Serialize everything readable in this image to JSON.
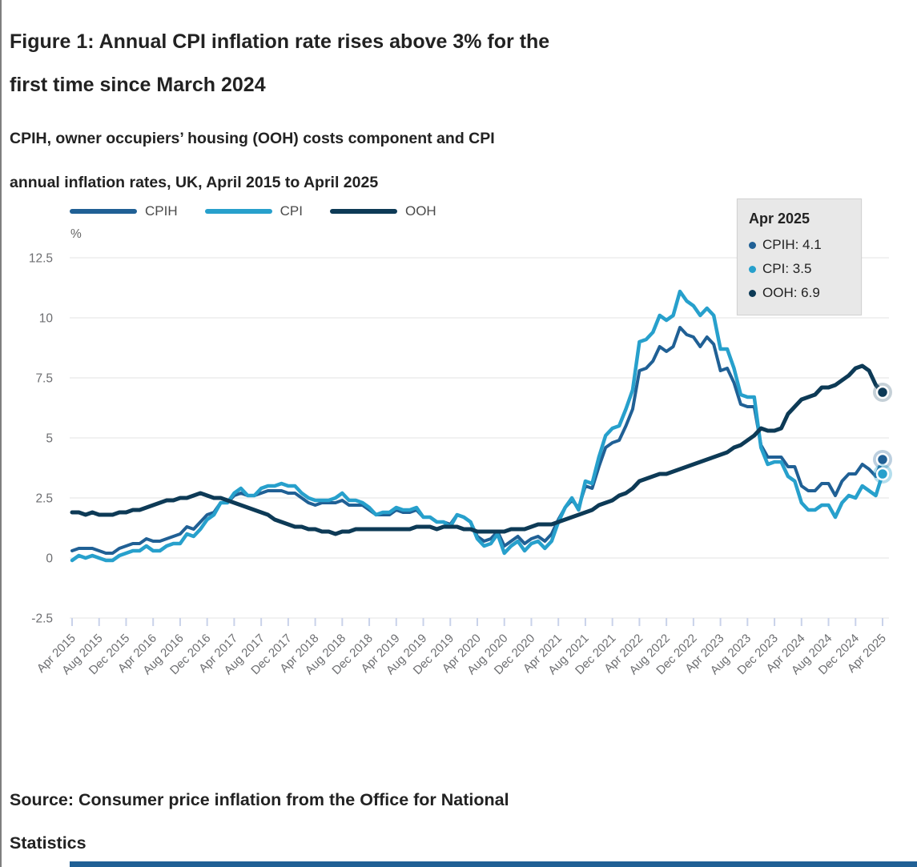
{
  "figure": {
    "title_line1": "Figure 1: Annual CPI inflation rate rises above 3% for the",
    "title_line2": "first time since March 2024",
    "subtitle_line1": "CPIH, owner occupiers’ housing (OOH) costs component and CPI",
    "subtitle_line2": "annual inflation rates, UK, April 2015 to April 2025",
    "source_line1": "Source: Consumer price inflation from the Office for National",
    "source_line2": "Statistics"
  },
  "tooltip": {
    "title": "Apr 2025",
    "rows": [
      {
        "series": "CPIH",
        "text": "CPIH: 4.1",
        "color": "#206095"
      },
      {
        "series": "CPI",
        "text": "CPI: 3.5",
        "color": "#27a0cc"
      },
      {
        "series": "OOH",
        "text": "OOH: 6.9",
        "color": "#0d3a56"
      }
    ]
  },
  "colors": {
    "cpih": "#206095",
    "cpi": "#27a0cc",
    "ooh": "#0d3a56",
    "gridline": "#e3e3e3",
    "tick": "#c9d2ea",
    "axis_text": "#6d6e71",
    "footer_bar": "#206095"
  },
  "chart_data": {
    "type": "line",
    "title": "Annual CPI inflation rate rises above 3% for the first time since March 2024",
    "ylabel": "%",
    "unit": "%",
    "x_start": "Apr 2015",
    "x_end": "Apr 2025",
    "frequency": "monthly",
    "ylim": [
      -2.5,
      12.5
    ],
    "grid": "horizontal",
    "legend_position": "top",
    "y_ticks": [
      12.5,
      10,
      7.5,
      5,
      2.5,
      0,
      -2.5
    ],
    "x_labels": [
      "Apr 2015",
      "Aug 2015",
      "Dec 2015",
      "Apr 2016",
      "Aug 2016",
      "Dec 2016",
      "Apr 2017",
      "Aug 2017",
      "Dec 2017",
      "Apr 2018",
      "Aug 2018",
      "Dec 2018",
      "Apr 2019",
      "Aug 2019",
      "Dec 2019",
      "Apr 2020",
      "Aug 2020",
      "Dec 2020",
      "Apr 2021",
      "Aug 2021",
      "Dec 2021",
      "Apr 2022",
      "Aug 2022",
      "Dec 2022",
      "Apr 2023",
      "Aug 2023",
      "Dec 2023",
      "Apr 2024",
      "Aug 2024",
      "Dec 2024",
      "Apr 2025"
    ],
    "series": [
      {
        "name": "CPIH",
        "color": "#206095",
        "width": 4,
        "values": [
          0.3,
          0.4,
          0.4,
          0.4,
          0.3,
          0.2,
          0.2,
          0.4,
          0.5,
          0.6,
          0.6,
          0.8,
          0.7,
          0.7,
          0.8,
          0.9,
          1.0,
          1.3,
          1.2,
          1.5,
          1.8,
          1.9,
          2.3,
          2.3,
          2.6,
          2.7,
          2.6,
          2.6,
          2.7,
          2.8,
          2.8,
          2.8,
          2.7,
          2.7,
          2.5,
          2.3,
          2.2,
          2.3,
          2.3,
          2.3,
          2.4,
          2.2,
          2.2,
          2.2,
          2.0,
          1.8,
          1.8,
          1.8,
          2.0,
          1.9,
          1.9,
          2.0,
          1.7,
          1.7,
          1.5,
          1.5,
          1.4,
          1.8,
          1.7,
          1.5,
          0.9,
          0.7,
          0.8,
          1.1,
          0.5,
          0.7,
          0.9,
          0.6,
          0.8,
          0.9,
          0.7,
          1.0,
          1.6,
          2.1,
          2.4,
          2.1,
          3.0,
          2.9,
          3.8,
          4.6,
          4.8,
          4.9,
          5.5,
          6.2,
          7.8,
          7.9,
          8.2,
          8.8,
          8.6,
          8.8,
          9.6,
          9.3,
          9.2,
          8.8,
          9.2,
          8.9,
          7.8,
          7.9,
          7.3,
          6.4,
          6.3,
          6.3,
          4.7,
          4.2,
          4.2,
          4.2,
          3.8,
          3.8,
          3.0,
          2.8,
          2.8,
          3.1,
          3.1,
          2.6,
          3.2,
          3.5,
          3.5,
          3.9,
          3.7,
          3.4,
          4.1
        ]
      },
      {
        "name": "CPI",
        "color": "#27a0cc",
        "width": 4.5,
        "values": [
          -0.1,
          0.1,
          0.0,
          0.1,
          0.0,
          -0.1,
          -0.1,
          0.1,
          0.2,
          0.3,
          0.3,
          0.5,
          0.3,
          0.3,
          0.5,
          0.6,
          0.6,
          1.0,
          0.9,
          1.2,
          1.6,
          1.8,
          2.3,
          2.3,
          2.7,
          2.9,
          2.6,
          2.6,
          2.9,
          3.0,
          3.0,
          3.1,
          3.0,
          3.0,
          2.7,
          2.5,
          2.4,
          2.4,
          2.4,
          2.5,
          2.7,
          2.4,
          2.4,
          2.3,
          2.1,
          1.8,
          1.9,
          1.9,
          2.1,
          2.0,
          2.0,
          2.1,
          1.7,
          1.7,
          1.5,
          1.5,
          1.3,
          1.8,
          1.7,
          1.5,
          0.8,
          0.5,
          0.6,
          1.0,
          0.2,
          0.5,
          0.7,
          0.3,
          0.6,
          0.7,
          0.4,
          0.7,
          1.5,
          2.1,
          2.5,
          2.0,
          3.2,
          3.1,
          4.2,
          5.1,
          5.4,
          5.5,
          6.2,
          7.0,
          9.0,
          9.1,
          9.4,
          10.1,
          9.9,
          10.1,
          11.1,
          10.7,
          10.5,
          10.1,
          10.4,
          10.1,
          8.7,
          8.7,
          7.9,
          6.8,
          6.7,
          6.7,
          4.6,
          3.9,
          4.0,
          4.0,
          3.4,
          3.2,
          2.3,
          2.0,
          2.0,
          2.2,
          2.2,
          1.7,
          2.3,
          2.6,
          2.5,
          3.0,
          2.8,
          2.6,
          3.5
        ]
      },
      {
        "name": "OOH",
        "color": "#0d3a56",
        "width": 5,
        "values": [
          1.9,
          1.9,
          1.8,
          1.9,
          1.8,
          1.8,
          1.8,
          1.9,
          1.9,
          2.0,
          2.0,
          2.1,
          2.2,
          2.3,
          2.4,
          2.4,
          2.5,
          2.5,
          2.6,
          2.7,
          2.6,
          2.5,
          2.5,
          2.4,
          2.3,
          2.2,
          2.1,
          2.0,
          1.9,
          1.8,
          1.6,
          1.5,
          1.4,
          1.3,
          1.3,
          1.2,
          1.2,
          1.1,
          1.1,
          1.0,
          1.1,
          1.1,
          1.2,
          1.2,
          1.2,
          1.2,
          1.2,
          1.2,
          1.2,
          1.2,
          1.2,
          1.3,
          1.3,
          1.3,
          1.2,
          1.3,
          1.3,
          1.3,
          1.2,
          1.2,
          1.1,
          1.1,
          1.1,
          1.1,
          1.1,
          1.2,
          1.2,
          1.2,
          1.3,
          1.4,
          1.4,
          1.4,
          1.5,
          1.6,
          1.7,
          1.8,
          1.9,
          2.0,
          2.2,
          2.3,
          2.4,
          2.6,
          2.7,
          2.9,
          3.2,
          3.3,
          3.4,
          3.5,
          3.5,
          3.6,
          3.7,
          3.8,
          3.9,
          4.0,
          4.1,
          4.2,
          4.3,
          4.4,
          4.6,
          4.7,
          4.9,
          5.1,
          5.4,
          5.3,
          5.3,
          5.4,
          6.0,
          6.3,
          6.6,
          6.7,
          6.8,
          7.1,
          7.1,
          7.2,
          7.4,
          7.6,
          7.9,
          8.0,
          7.8,
          7.2,
          6.9
        ]
      }
    ],
    "end_markers": [
      {
        "series": "CPIH",
        "value": 4.1,
        "color": "#206095",
        "halo": "rgba(32,96,149,0.30)"
      },
      {
        "series": "CPI",
        "value": 3.5,
        "color": "#27a0cc",
        "halo": "rgba(39,160,204,0.35)"
      },
      {
        "series": "OOH",
        "value": 6.9,
        "color": "#0d3a56",
        "halo": "rgba(90,120,140,0.35)"
      }
    ]
  }
}
